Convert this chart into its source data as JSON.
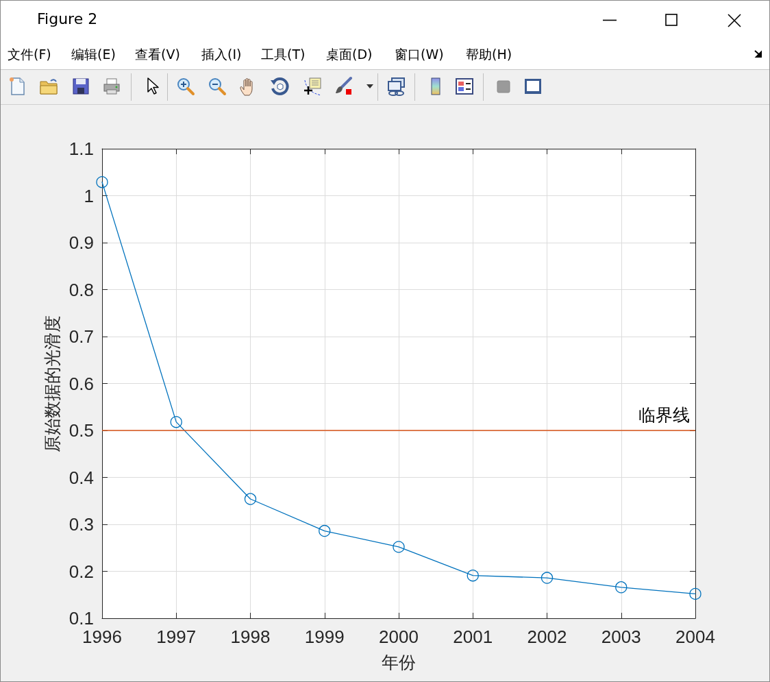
{
  "chart_data": {
    "type": "line",
    "xlabel": "年份",
    "ylabel": "原始数据的光滑度",
    "x": [
      1996,
      1997,
      1998,
      1999,
      2000,
      2001,
      2002,
      2003,
      2004
    ],
    "series": [
      {
        "color": "#0072bd",
        "values": [
          1.029,
          0.518,
          0.354,
          0.286,
          0.252,
          0.191,
          0.186,
          0.166,
          0.152
        ]
      }
    ],
    "xlim": [
      1996,
      2004
    ],
    "ylim": [
      0.1,
      1.1
    ],
    "xticks": [
      1996,
      1997,
      1998,
      1999,
      2000,
      2001,
      2002,
      2003,
      2004
    ],
    "yticks": [
      0.1,
      0.2,
      0.3,
      0.4,
      0.5,
      0.6,
      0.7,
      0.8,
      0.9,
      1,
      1.1
    ],
    "grid": true,
    "marker": "circle",
    "line_style": "solid",
    "ref_lines": [
      {
        "axis": "y",
        "value": 0.5,
        "label": "临界线",
        "color": "#d95319"
      }
    ],
    "annotations": [
      "Figure 2",
      "文件(F)",
      "编辑(E)",
      "查看(V)",
      "插入(I)",
      "工具(T)",
      "桌面(D)",
      "窗口(W)",
      "帮助(H)"
    ]
  }
}
